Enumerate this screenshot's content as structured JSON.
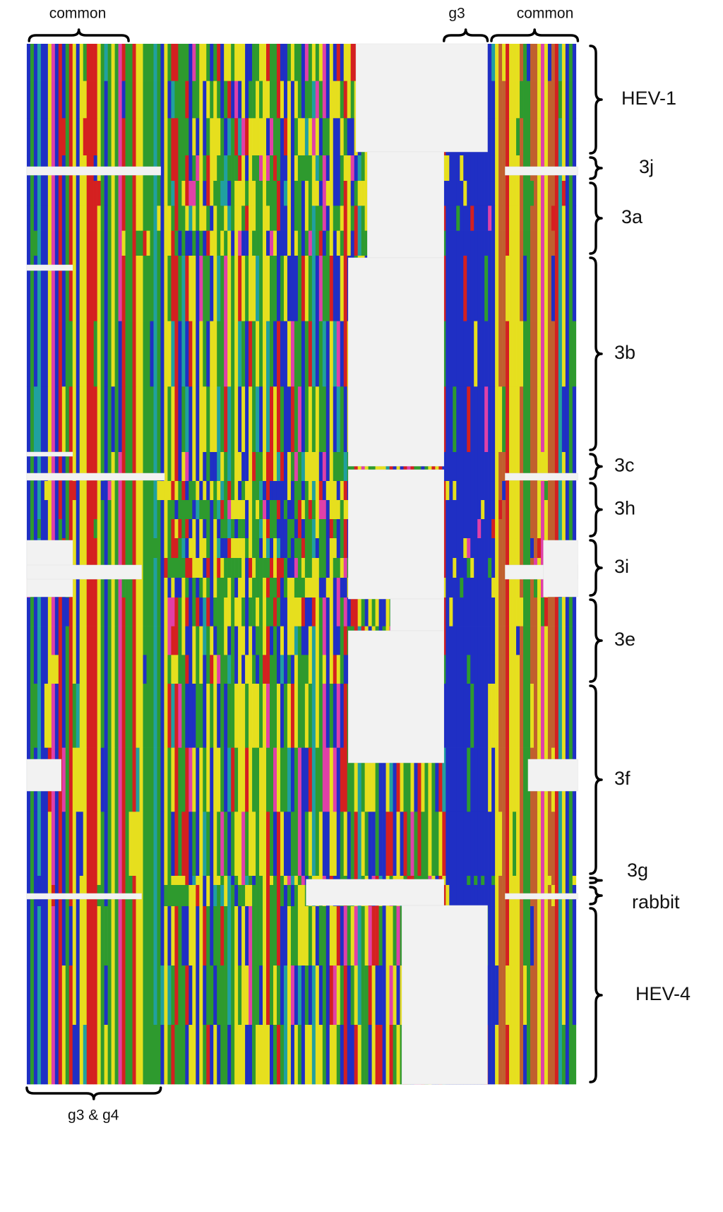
{
  "top_labels": [
    "common",
    "g3",
    "common"
  ],
  "bottom_label": "g3 & g4",
  "groups": [
    {
      "label": "HEV-1"
    },
    {
      "label": "3j"
    },
    {
      "label": "3a"
    },
    {
      "label": "3b"
    },
    {
      "label": "3c"
    },
    {
      "label": "3h"
    },
    {
      "label": "3i"
    },
    {
      "label": "3e"
    },
    {
      "label": "3f"
    },
    {
      "label": "3g"
    },
    {
      "label": "rabbit"
    },
    {
      "label": "HEV-4"
    }
  ]
}
